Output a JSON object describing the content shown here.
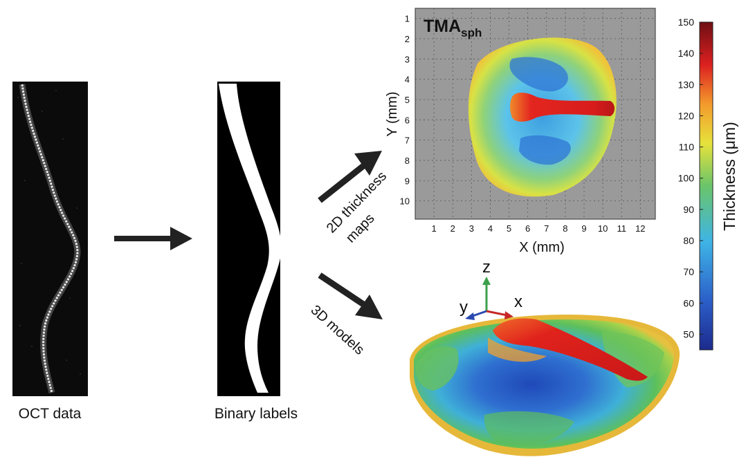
{
  "oct": {
    "caption": "OCT data"
  },
  "binary": {
    "caption": "Binary labels"
  },
  "arrows": {
    "upper_label_line1": "2D thickness",
    "upper_label_line2": "maps",
    "lower_label": "3D models"
  },
  "map2d": {
    "title_main": "TMA",
    "title_sub": "sph",
    "xlabel": "X (mm)",
    "ylabel": "Y (mm)",
    "x_ticks": [
      "1",
      "2",
      "3",
      "4",
      "5",
      "6",
      "7",
      "8",
      "9",
      "10",
      "11",
      "12"
    ],
    "y_ticks": [
      "1",
      "2",
      "3",
      "4",
      "5",
      "6",
      "7",
      "8",
      "9",
      "10"
    ],
    "background_color": "#9a9a9a"
  },
  "colorbar": {
    "label": "Thickness (μm)",
    "ticks": [
      "150",
      "140",
      "130",
      "120",
      "110",
      "100",
      "90",
      "80",
      "70",
      "60",
      "50"
    ],
    "min": 45,
    "max": 150
  },
  "axes3d": {
    "z": "z",
    "y": "y",
    "x": "x"
  },
  "colors": {
    "jet_low": "#1a2a8a",
    "jet_blue": "#2f6fd0",
    "jet_cyan": "#45b8e8",
    "jet_green": "#66c060",
    "jet_yellow": "#e8e040",
    "jet_orange": "#f08a2a",
    "jet_red": "#d81c1c",
    "jet_high": "#6e0f14"
  }
}
